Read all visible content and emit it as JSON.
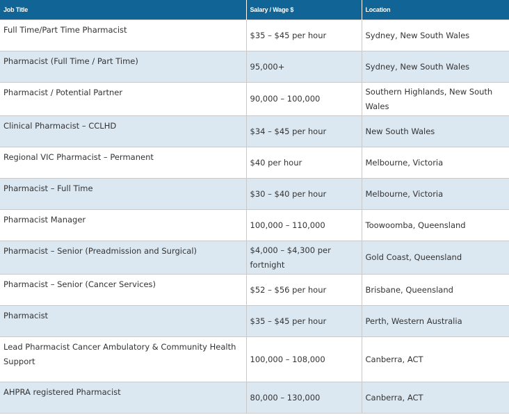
{
  "table": {
    "headers": [
      "Job Title",
      "Salary / Wage $",
      "Location"
    ],
    "rows": [
      {
        "title": "Full Time/Part Time Pharmacist",
        "salary": "$35 – $45 per hour",
        "location": "Sydney, New South Wales"
      },
      {
        "title": "Pharmacist (Full Time / Part Time)",
        "salary": "95,000+",
        "location": "Sydney, New South Wales"
      },
      {
        "title": "Pharmacist / Potential Partner",
        "salary": "90,000 – 100,000",
        "location": "Southern Highlands, New South Wales"
      },
      {
        "title": "Clinical Pharmacist – CCLHD",
        "salary": "$34 – $45 per hour",
        "location": "New South Wales"
      },
      {
        "title": "Regional VIC Pharmacist – Permanent",
        "salary": "$40 per hour",
        "location": "Melbourne, Victoria"
      },
      {
        "title": "Pharmacist – Full Time",
        "salary": "$30 – $40 per hour",
        "location": "Melbourne, Victoria"
      },
      {
        "title": "Pharmacist Manager",
        "salary": "100,000 – 110,000",
        "location": "Toowoomba, Queensland"
      },
      {
        "title": "Pharmacist – Senior (Preadmission and Surgical)",
        "salary": "$4,000 – $4,300 per fortnight",
        "location": "Gold Coast, Queensland"
      },
      {
        "title": "Pharmacist – Senior (Cancer Services)",
        "salary": "$52 – $56 per hour",
        "location": "Brisbane, Queensland"
      },
      {
        "title": "Pharmacist",
        "salary": "$35 – $45 per hour",
        "location": "Perth, Western Australia"
      },
      {
        "title": "Lead Pharmacist Cancer Ambulatory & Community Health Support",
        "salary": "100,000 – 108,000",
        "location": "Canberra, ACT"
      },
      {
        "title": "AHPRA registered Pharmacist",
        "salary": "80,000 – 130,000",
        "location": "Canberra, ACT"
      }
    ]
  }
}
